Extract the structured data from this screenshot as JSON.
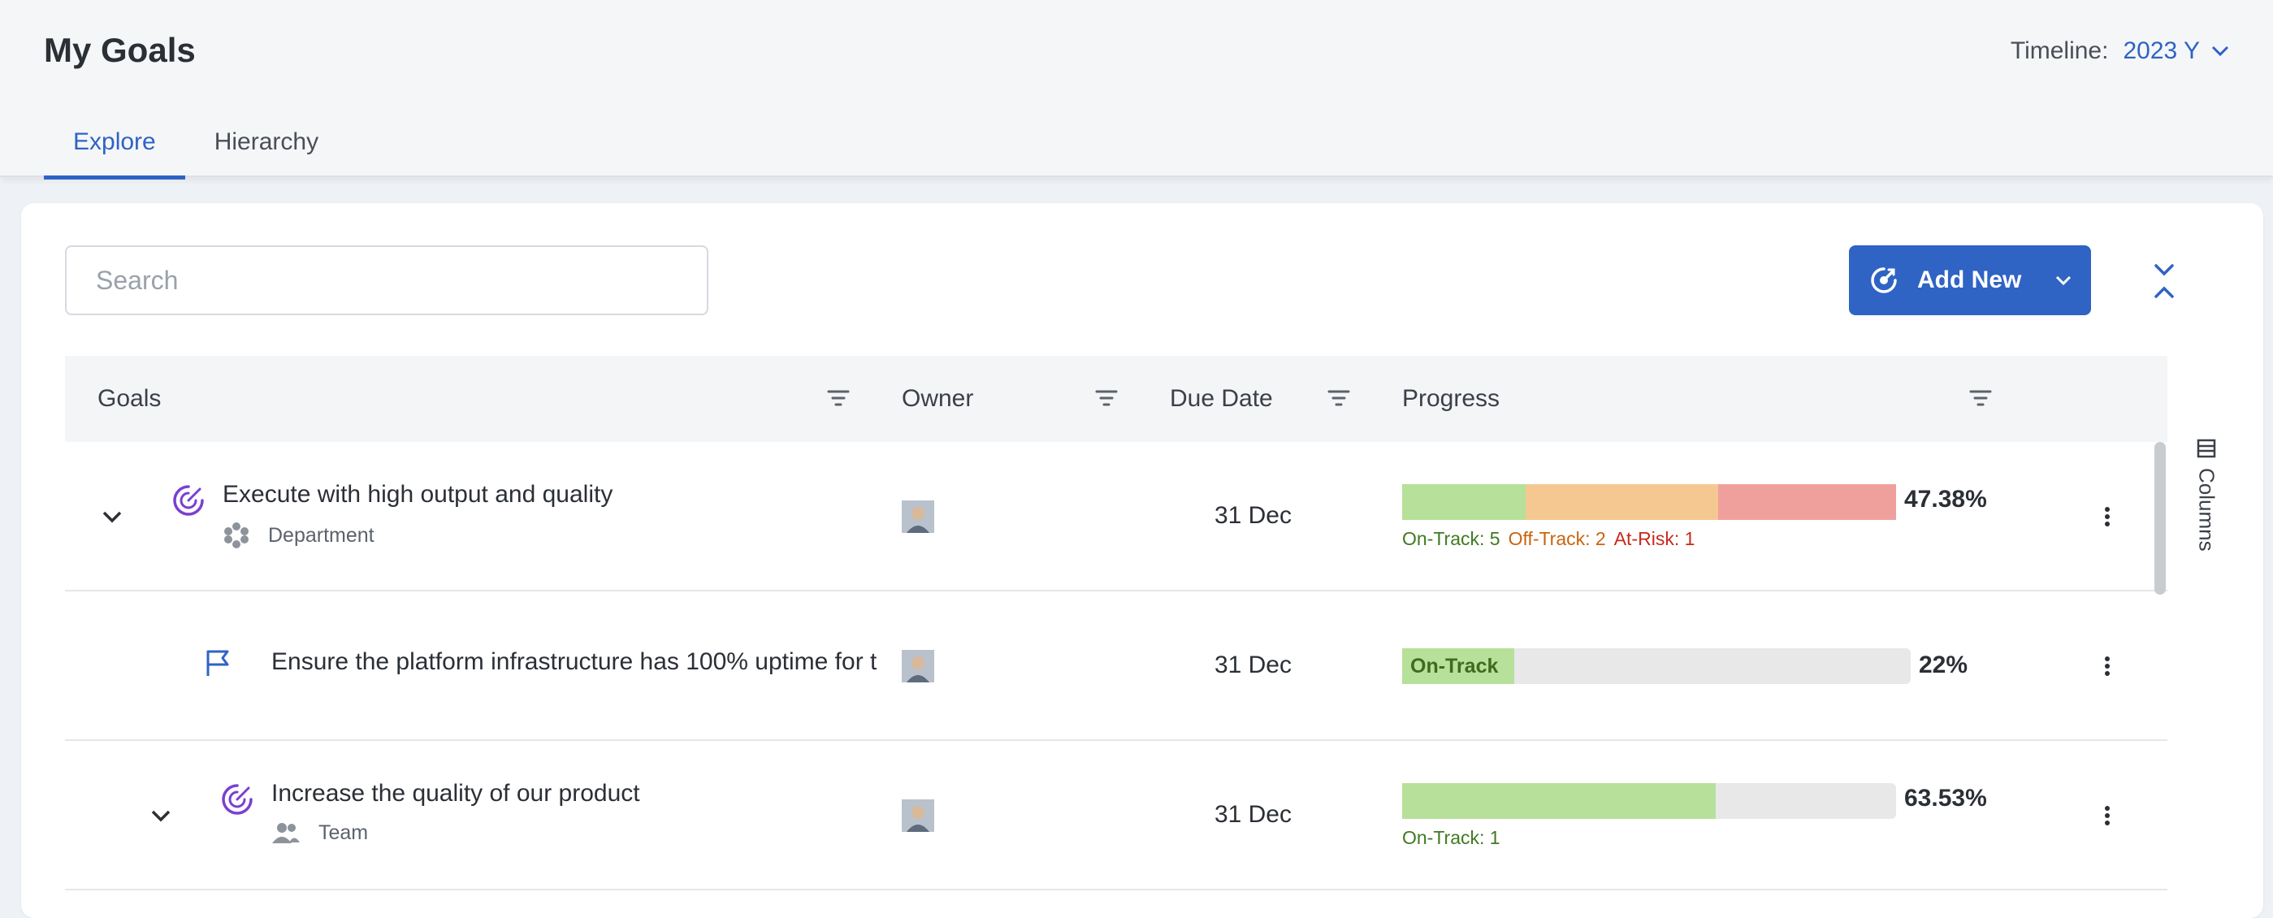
{
  "header": {
    "title": "My Goals",
    "timeline_label": "Timeline:",
    "timeline_value": "2023 Y",
    "tabs": [
      {
        "label": "Explore",
        "active": true
      },
      {
        "label": "Hierarchy",
        "active": false
      }
    ]
  },
  "toolbar": {
    "search_placeholder": "Search",
    "add_new_label": "Add New",
    "columns_label": "Columns"
  },
  "table": {
    "columns": [
      "Goals",
      "Owner",
      "Due Date",
      "Progress"
    ],
    "rows": [
      {
        "title": "Execute with high output and quality",
        "subtitle": "Department",
        "icon": "goal-target-icon",
        "sub_icon": "department-icon",
        "expandable": true,
        "due": "31 Dec",
        "progress_pct": "47.38%",
        "segments": [
          {
            "status": "on-track",
            "fraction": 0.25,
            "color": "#b7e09a"
          },
          {
            "status": "off-track",
            "fraction": 0.39,
            "color": "#f4c890"
          },
          {
            "status": "at-risk",
            "fraction": 0.36,
            "color": "#f0a09c"
          }
        ],
        "legend": [
          {
            "text": "On-Track: 5",
            "color": "#3f7a1f"
          },
          {
            "text": "Off-Track: 2",
            "color": "#c8650f"
          },
          {
            "text": "At-Risk: 1",
            "color": "#c62b1c"
          }
        ]
      },
      {
        "title": "Ensure the platform infrastructure has 100% uptime for t",
        "icon": "flag-icon",
        "expandable": false,
        "due": "31 Dec",
        "progress_pct": "22%",
        "bar_label": "On-Track",
        "segments": [
          {
            "status": "on-track",
            "fraction": 0.22,
            "color": "#b7e09a"
          }
        ]
      },
      {
        "title": "Increase the quality of our product",
        "subtitle": "Team",
        "icon": "goal-target-icon",
        "sub_icon": "team-icon",
        "expandable": true,
        "due": "31 Dec",
        "progress_pct": "63.53%",
        "segments": [
          {
            "status": "on-track",
            "fraction": 0.6353,
            "color": "#b7e09a"
          }
        ],
        "legend": [
          {
            "text": "On-Track: 1",
            "color": "#3f7a1f"
          }
        ]
      }
    ]
  },
  "colors": {
    "accent": "#2f63c4",
    "goal_icon": "#7b3fd0",
    "on_track": "#b7e09a",
    "off_track": "#f4c890",
    "at_risk": "#f0a09c"
  }
}
